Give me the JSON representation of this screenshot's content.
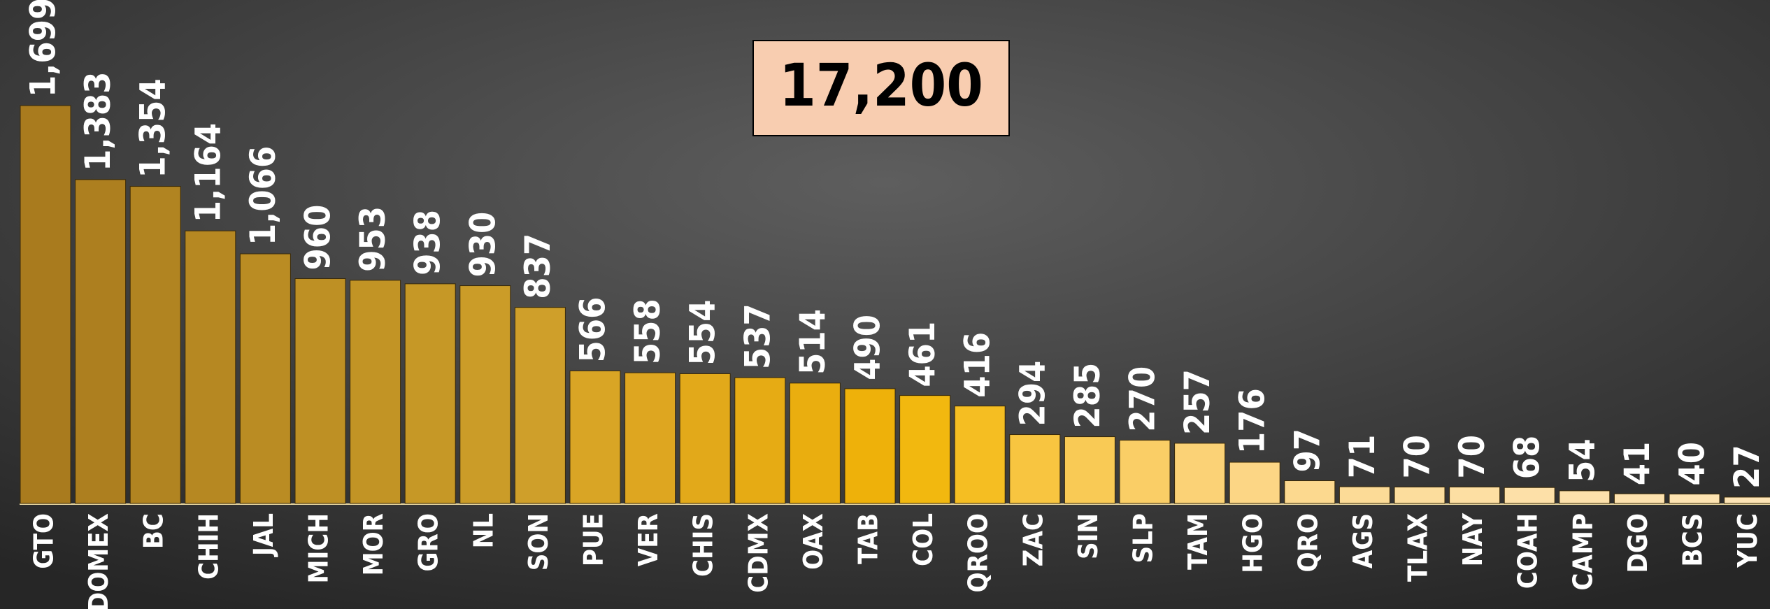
{
  "chart_data": {
    "type": "bar",
    "total_label": "17,200",
    "categories": [
      "GTO",
      "EDOMEX",
      "BC",
      "CHIH",
      "JAL",
      "MICH",
      "MOR",
      "GRO",
      "NL",
      "SON",
      "PUE",
      "VER",
      "CHIS",
      "CDMX",
      "OAX",
      "TAB",
      "COL",
      "QROO",
      "ZAC",
      "SIN",
      "SLP",
      "TAM",
      "HGO",
      "QRO",
      "AGS",
      "TLAX",
      "NAY",
      "COAH",
      "CAMP",
      "DGO",
      "BCS",
      "YUC"
    ],
    "values": [
      1699,
      1383,
      1354,
      1164,
      1066,
      960,
      953,
      938,
      930,
      837,
      566,
      558,
      554,
      537,
      514,
      490,
      461,
      416,
      294,
      285,
      270,
      257,
      176,
      97,
      71,
      70,
      70,
      68,
      54,
      41,
      40,
      27
    ],
    "value_labels": [
      "1,699",
      "1,383",
      "1,354",
      "1,164",
      "1,066",
      "960",
      "953",
      "938",
      "930",
      "837",
      "566",
      "558",
      "554",
      "537",
      "514",
      "490",
      "461",
      "416",
      "294",
      "285",
      "270",
      "257",
      "176",
      "97",
      "71",
      "70",
      "70",
      "68",
      "54",
      "41",
      "40",
      "27"
    ],
    "colors": [
      "#a97b1e",
      "#ad7f1f",
      "#b18421",
      "#b68822",
      "#ba8c23",
      "#be9024",
      "#c29425",
      "#c69826",
      "#cb9c28",
      "#cf9f2a",
      "#d9a525",
      "#dea620",
      "#e2a91a",
      "#e6ab14",
      "#eaae0f",
      "#eeb10a",
      "#f2b80f",
      "#f5be22",
      "#f8c540",
      "#f9ca55",
      "#face66",
      "#fbd276",
      "#fcd685",
      "#fcd98f",
      "#fcdb97",
      "#fcdd9d",
      "#fddfa3",
      "#fde0a8",
      "#fde1ab",
      "#fde2ae",
      "#fde3b1",
      "#fde4b5"
    ],
    "ylim": [
      0,
      2150
    ]
  }
}
